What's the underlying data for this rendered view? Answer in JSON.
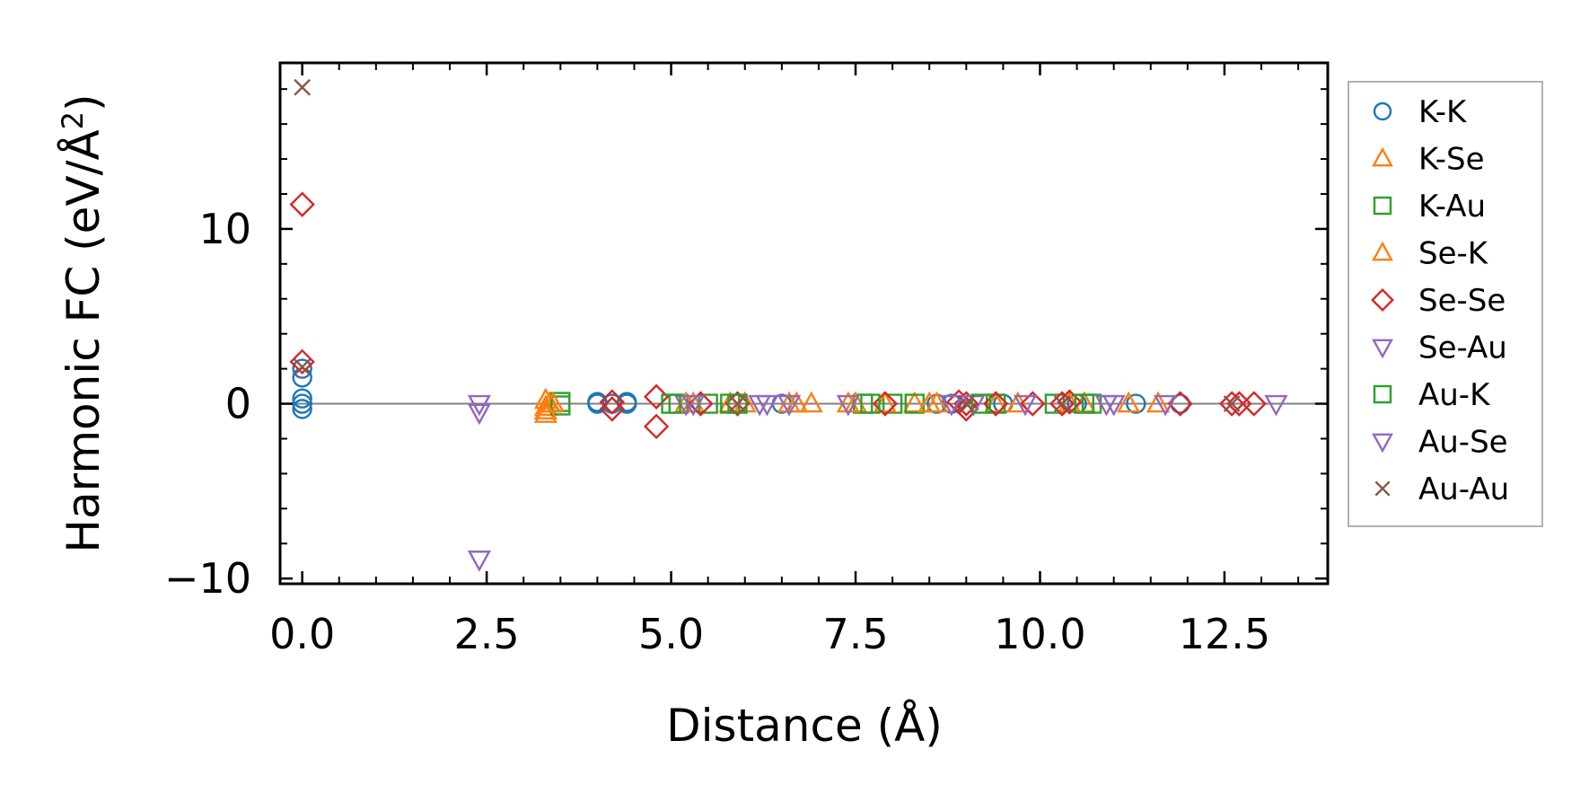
{
  "chart_data": {
    "type": "scatter",
    "title": "",
    "xlabel": "Distance (Å)",
    "ylabel": "Harmonic FC (eV/Å",
    "ylabel_superscript": "2",
    "ylabel_close": ")",
    "xlim": [
      -0.3,
      13.9
    ],
    "ylim": [
      -10.3,
      19.5
    ],
    "xticks": [
      0.0,
      2.5,
      5.0,
      7.5,
      10.0,
      12.5
    ],
    "xtick_labels": [
      "0.0",
      "2.5",
      "5.0",
      "7.5",
      "10.0",
      "12.5"
    ],
    "yticks": [
      -10,
      0,
      10
    ],
    "ytick_labels": [
      "−10",
      "0",
      "10"
    ],
    "zero_line": true,
    "legend_position": "outside-right",
    "series": [
      {
        "name": "K-K",
        "marker": "circle",
        "filled": false,
        "color": "#1f77b4",
        "points": [
          [
            0.0,
            2.0
          ],
          [
            0.0,
            1.5
          ],
          [
            0.0,
            0.3
          ],
          [
            0.0,
            0.0
          ],
          [
            0.0,
            -0.3
          ],
          [
            4.0,
            0.1
          ],
          [
            4.0,
            0.0
          ],
          [
            4.2,
            0.0
          ],
          [
            4.4,
            0.1
          ],
          [
            4.4,
            0.0
          ],
          [
            6.5,
            0.0
          ],
          [
            8.6,
            0.0
          ],
          [
            8.8,
            0.0
          ],
          [
            9.5,
            0.0
          ],
          [
            10.5,
            0.0
          ],
          [
            11.3,
            0.0
          ],
          [
            11.9,
            0.0
          ]
        ]
      },
      {
        "name": "K-Se",
        "marker": "triangle-up",
        "filled": false,
        "color": "#ff7f0e",
        "points": [
          [
            3.3,
            0.2
          ],
          [
            3.3,
            -0.2
          ],
          [
            3.3,
            -0.6
          ],
          [
            3.35,
            0.0
          ],
          [
            5.3,
            0.0
          ],
          [
            5.8,
            0.0
          ],
          [
            6.0,
            0.0
          ],
          [
            6.7,
            0.0
          ],
          [
            6.9,
            0.0
          ],
          [
            7.4,
            0.0
          ],
          [
            8.3,
            0.0
          ],
          [
            8.6,
            0.0
          ],
          [
            9.4,
            0.0
          ],
          [
            10.6,
            0.0
          ],
          [
            11.6,
            0.0
          ]
        ]
      },
      {
        "name": "K-Au",
        "marker": "square",
        "filled": false,
        "color": "#2ca02c",
        "points": [
          [
            3.5,
            0.1
          ],
          [
            3.5,
            -0.1
          ],
          [
            5.1,
            0.0
          ],
          [
            5.5,
            0.0
          ],
          [
            5.8,
            0.0
          ],
          [
            7.6,
            0.0
          ],
          [
            8.0,
            0.0
          ],
          [
            8.3,
            0.0
          ],
          [
            9.4,
            0.0
          ],
          [
            10.2,
            0.0
          ],
          [
            10.7,
            0.0
          ]
        ]
      },
      {
        "name": "Se-K",
        "marker": "triangle-up",
        "filled": false,
        "color": "#ff7f0e",
        "points": [
          [
            3.3,
            -0.4
          ],
          [
            3.4,
            0.0
          ],
          [
            5.2,
            0.0
          ],
          [
            6.6,
            0.0
          ],
          [
            7.5,
            0.0
          ],
          [
            7.9,
            0.0
          ],
          [
            8.5,
            0.0
          ],
          [
            9.7,
            0.0
          ],
          [
            10.4,
            0.0
          ],
          [
            11.2,
            0.0
          ]
        ]
      },
      {
        "name": "Se-Se",
        "marker": "diamond",
        "filled": false,
        "color": "#d62728",
        "points": [
          [
            0.0,
            11.4
          ],
          [
            0.0,
            2.4
          ],
          [
            4.2,
            0.1
          ],
          [
            4.2,
            -0.3
          ],
          [
            4.8,
            0.4
          ],
          [
            4.8,
            -1.3
          ],
          [
            5.4,
            0.0
          ],
          [
            5.9,
            0.0
          ],
          [
            7.9,
            0.0
          ],
          [
            8.9,
            0.1
          ],
          [
            9.0,
            0.0
          ],
          [
            9.0,
            -0.3
          ],
          [
            9.4,
            0.0
          ],
          [
            9.9,
            0.0
          ],
          [
            10.3,
            0.0
          ],
          [
            10.4,
            0.1
          ],
          [
            11.9,
            0.0
          ],
          [
            12.6,
            0.0
          ],
          [
            12.7,
            0.0
          ],
          [
            12.9,
            0.0
          ]
        ]
      },
      {
        "name": "Se-Au",
        "marker": "triangle-down",
        "filled": false,
        "color": "#9467bd",
        "points": [
          [
            2.4,
            0.0
          ],
          [
            2.4,
            -0.5
          ],
          [
            2.4,
            -8.9
          ],
          [
            5.2,
            0.0
          ],
          [
            6.2,
            0.0
          ],
          [
            7.4,
            0.0
          ],
          [
            9.1,
            0.0
          ],
          [
            10.9,
            0.0
          ],
          [
            13.2,
            0.0
          ]
        ]
      },
      {
        "name": "Au-K",
        "marker": "square",
        "filled": false,
        "color": "#2ca02c",
        "points": [
          [
            5.0,
            0.0
          ],
          [
            5.9,
            0.0
          ],
          [
            7.7,
            0.0
          ],
          [
            9.2,
            0.0
          ],
          [
            10.6,
            0.0
          ]
        ]
      },
      {
        "name": "Au-Se",
        "marker": "triangle-down",
        "filled": false,
        "color": "#9467bd",
        "points": [
          [
            5.3,
            0.0
          ],
          [
            6.3,
            0.0
          ],
          [
            6.6,
            0.0
          ],
          [
            8.8,
            0.0
          ],
          [
            9.8,
            0.0
          ],
          [
            11.0,
            0.0
          ],
          [
            11.7,
            0.0
          ]
        ]
      },
      {
        "name": "Au-Au",
        "marker": "x",
        "filled": false,
        "color": "#8c564b",
        "points": [
          [
            0.0,
            18.1
          ],
          [
            0.0,
            2.1
          ],
          [
            5.9,
            0.0
          ],
          [
            9.0,
            0.0
          ],
          [
            10.3,
            0.0
          ],
          [
            12.6,
            0.0
          ]
        ]
      }
    ]
  }
}
